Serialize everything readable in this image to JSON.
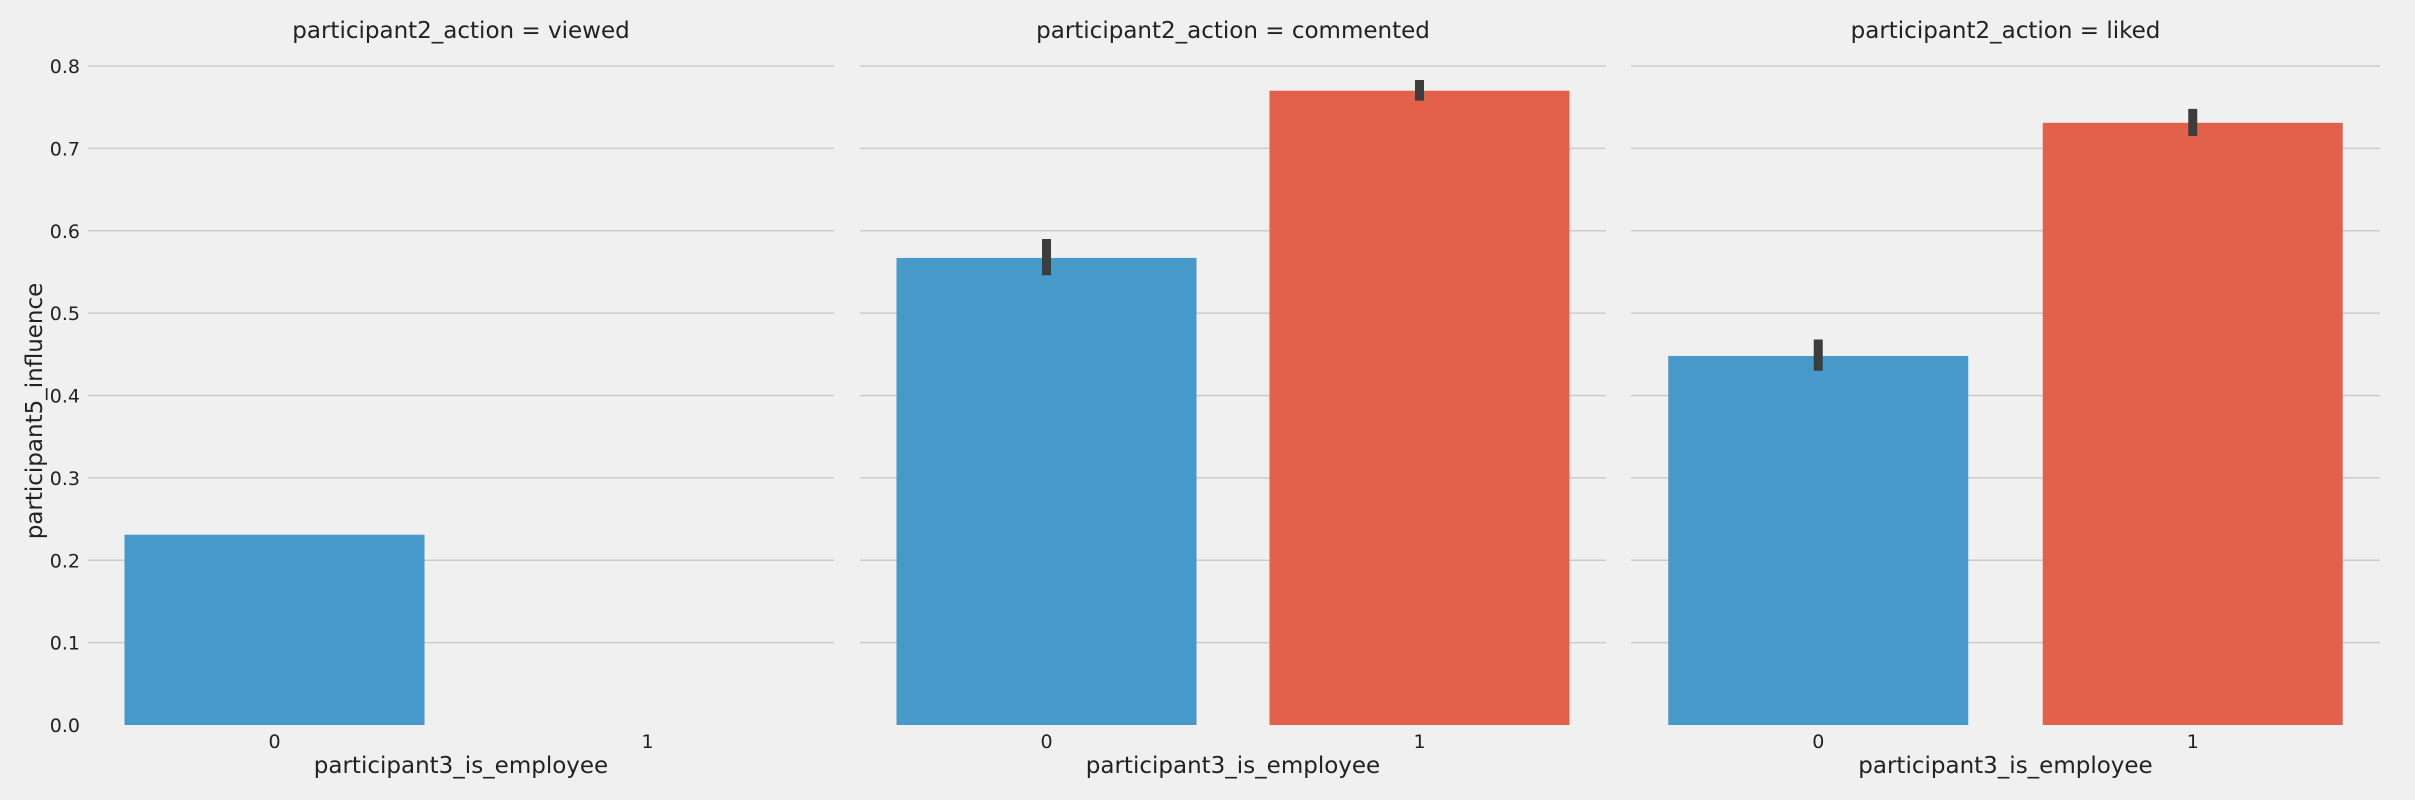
{
  "chart_data": {
    "type": "bar",
    "facet_label": "participant2_action",
    "xlabel": "participant3_is_employee",
    "ylabel": "participant5_influence",
    "ylim": [
      0,
      0.8
    ],
    "yticks": [
      "0.0",
      "0.1",
      "0.2",
      "0.3",
      "0.4",
      "0.5",
      "0.6",
      "0.7",
      "0.8"
    ],
    "grid": true,
    "categories": [
      "0",
      "1"
    ],
    "colors": {
      "0": "#4699c8",
      "1": "#e3604a",
      "errorbar": "#3d3d3d"
    },
    "panels": [
      {
        "title": "participant2_action = viewed",
        "bars": [
          {
            "category": "0",
            "value": 0.231,
            "ci": [
              0.231,
              0.231
            ]
          },
          {
            "category": "1",
            "value": null,
            "ci": null
          }
        ]
      },
      {
        "title": "participant2_action = commented",
        "bars": [
          {
            "category": "0",
            "value": 0.567,
            "ci": [
              0.546,
              0.59
            ]
          },
          {
            "category": "1",
            "value": 0.77,
            "ci": [
              0.758,
              0.783
            ]
          }
        ]
      },
      {
        "title": "participant2_action = liked",
        "bars": [
          {
            "category": "0",
            "value": 0.448,
            "ci": [
              0.43,
              0.468
            ]
          },
          {
            "category": "1",
            "value": 0.731,
            "ci": [
              0.715,
              0.748
            ]
          }
        ]
      }
    ]
  }
}
